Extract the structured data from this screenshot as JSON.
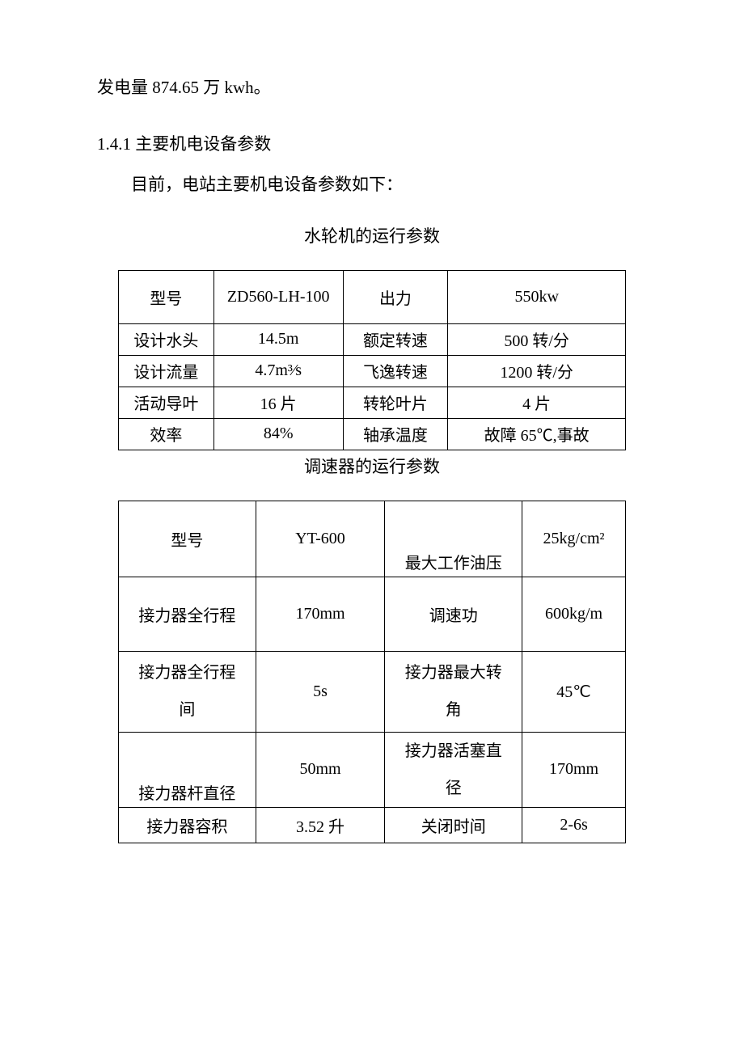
{
  "intro_para": "发电量 874.65 万 kwh。",
  "section_heading": "1.4.1 主要机电设备参数",
  "sub_para": "目前，电站主要机电设备参数如下：",
  "table1": {
    "title": "水轮机的运行参数",
    "rows": [
      [
        "型号",
        "ZD560-LH-100",
        "出力",
        "550kw"
      ],
      [
        "设计水头",
        "14.5m",
        "额定转速",
        "500 转/分"
      ],
      [
        "设计流量",
        "4.7m³⁄s",
        "飞逸转速",
        "1200 转/分"
      ],
      [
        "活动导叶",
        "16 片",
        "转轮叶片",
        "4 片"
      ],
      [
        "效率",
        "84%",
        "轴承温度",
        "故障 65℃,事故"
      ]
    ]
  },
  "table2": {
    "title": "调速器的运行参数",
    "rows": [
      [
        "型号",
        "YT-600",
        "最大工作油压",
        "25kg/cm²"
      ],
      [
        "接力器全行程",
        "170mm",
        "调速功",
        "600kg/m"
      ],
      [
        "接力器全行程间",
        "5s",
        "接力器最大转角",
        "45℃"
      ],
      [
        "接力器杆直径",
        "50mm",
        "接力器活塞直径",
        "170mm"
      ],
      [
        "接力器容积",
        "3.52 升",
        "关闭时间",
        "2-6s"
      ]
    ]
  },
  "t2r3c1_line1": "接力器全行程",
  "t2r3c1_line2": "间",
  "t2r3c3_line1": "接力器最大转",
  "t2r3c3_line2": "角",
  "t2r4c3_line1": "接力器活塞直",
  "t2r4c3_line2": "径"
}
